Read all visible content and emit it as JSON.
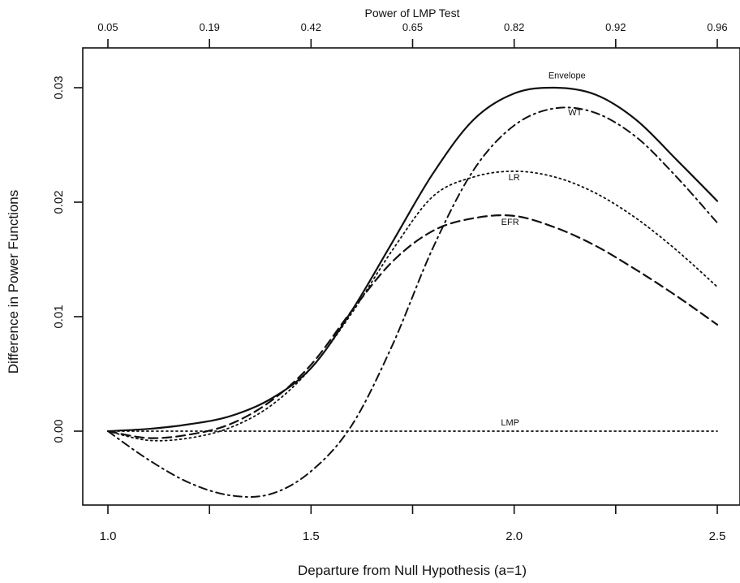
{
  "chart_data": {
    "type": "line",
    "xlabel": "Departure from Null Hypothesis (a=1)",
    "ylabel": "Difference in Power Functions",
    "top_axis_label": "Power of LMP Test",
    "xlim": [
      1.0,
      2.5
    ],
    "ylim": [
      -0.0065,
      0.0335
    ],
    "x_ticks": [
      1.0,
      1.25,
      1.5,
      1.75,
      2.0,
      2.25,
      2.5
    ],
    "x_tick_labels": [
      "1.0",
      "",
      "1.5",
      "",
      "2.0",
      "",
      "2.5"
    ],
    "y_ticks": [
      0.0,
      0.01,
      0.02,
      0.03
    ],
    "y_tick_labels": [
      "0.00",
      "0.01",
      "0.02",
      "0.03"
    ],
    "top_ticks": [
      1.0,
      1.25,
      1.5,
      1.75,
      2.0,
      2.25,
      2.5
    ],
    "top_tick_labels": [
      "0.05",
      "0.19",
      "0.42",
      "0.65",
      "0.82",
      "0.92",
      "0.96"
    ],
    "grid": false,
    "legend": "none (series labeled directly on curves)",
    "series": [
      {
        "name": "Envelope",
        "style": "solid",
        "x": [
          1.0,
          1.1,
          1.2,
          1.3,
          1.4,
          1.5,
          1.6,
          1.7,
          1.8,
          1.9,
          2.0,
          2.1,
          2.2,
          2.3,
          2.4,
          2.5
        ],
        "y": [
          0.0,
          0.0002,
          0.0006,
          0.0013,
          0.0028,
          0.0055,
          0.0105,
          0.0165,
          0.0225,
          0.0272,
          0.0295,
          0.03,
          0.0294,
          0.0272,
          0.0237,
          0.0201
        ]
      },
      {
        "name": "WT",
        "style": "dashdot",
        "x": [
          1.0,
          1.1,
          1.2,
          1.3,
          1.4,
          1.5,
          1.6,
          1.7,
          1.8,
          1.9,
          2.0,
          2.1,
          2.2,
          2.3,
          2.4,
          2.5
        ],
        "y": [
          0.0,
          -0.0025,
          -0.0045,
          -0.0056,
          -0.0055,
          -0.0035,
          0.0005,
          0.0075,
          0.016,
          0.0228,
          0.0267,
          0.0282,
          0.0278,
          0.0257,
          0.0222,
          0.0182
        ]
      },
      {
        "name": "LR",
        "style": "dotted",
        "x": [
          1.0,
          1.1,
          1.2,
          1.3,
          1.4,
          1.5,
          1.6,
          1.7,
          1.8,
          1.9,
          2.0,
          2.1,
          2.2,
          2.3,
          2.4,
          2.5
        ],
        "y": [
          0.0,
          -0.0008,
          -0.0006,
          0.0003,
          0.0022,
          0.0055,
          0.0103,
          0.0158,
          0.0205,
          0.0222,
          0.0227,
          0.0222,
          0.0208,
          0.0186,
          0.0158,
          0.0126
        ]
      },
      {
        "name": "EFR",
        "style": "dashed",
        "x": [
          1.0,
          1.1,
          1.2,
          1.3,
          1.4,
          1.5,
          1.6,
          1.7,
          1.8,
          1.9,
          2.0,
          2.1,
          2.2,
          2.3,
          2.4,
          2.5
        ],
        "y": [
          0.0,
          -0.0006,
          -0.0003,
          0.0006,
          0.0026,
          0.0058,
          0.0105,
          0.0148,
          0.0175,
          0.0186,
          0.0188,
          0.0178,
          0.0162,
          0.0141,
          0.0118,
          0.0093
        ]
      },
      {
        "name": "LMP",
        "style": "dotted",
        "x": [
          1.0,
          1.5,
          2.0,
          2.5
        ],
        "y": [
          0.0,
          0.0,
          0.0,
          0.0
        ]
      }
    ],
    "annotations": [
      {
        "text": "Envelope",
        "x": 2.13,
        "y": 0.0308
      },
      {
        "text": "WT",
        "x": 2.15,
        "y": 0.0276
      },
      {
        "text": "LR",
        "x": 2.0,
        "y": 0.0219
      },
      {
        "text": "EFR",
        "x": 1.99,
        "y": 0.018
      },
      {
        "text": "LMP",
        "x": 1.99,
        "y": 0.0005
      }
    ]
  }
}
